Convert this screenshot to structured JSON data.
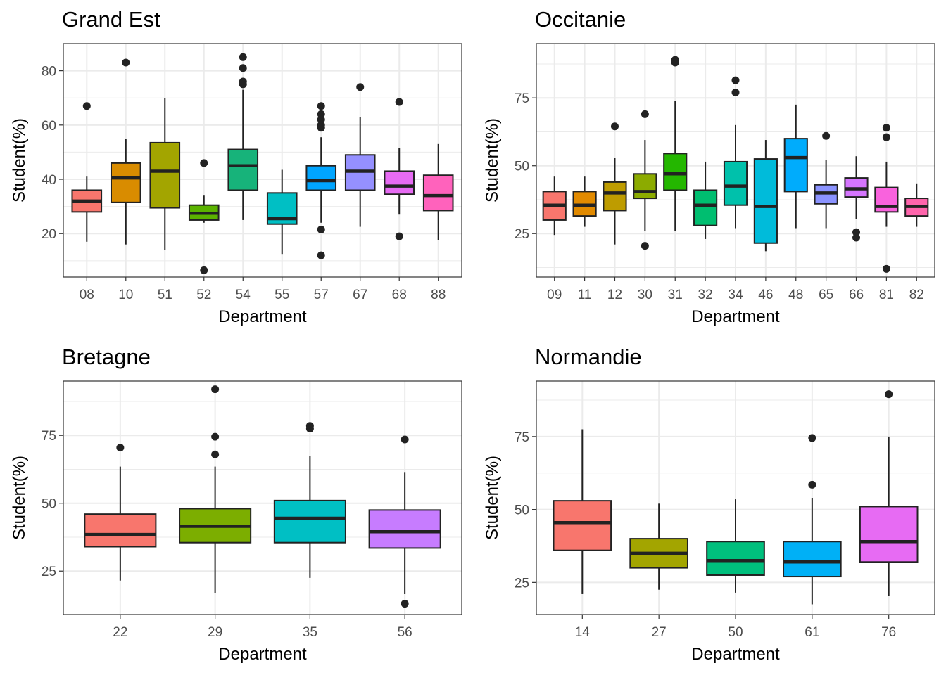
{
  "chart_data": [
    {
      "type": "boxplot",
      "title": "Grand Est",
      "xlabel": "Department",
      "ylabel": "Student(%)",
      "ylim": [
        4,
        90
      ],
      "yticks": [
        20,
        40,
        60,
        80
      ],
      "grid": true,
      "legend": "none",
      "categories": [
        "08",
        "10",
        "51",
        "52",
        "54",
        "55",
        "57",
        "67",
        "68",
        "88"
      ],
      "colors": [
        "#F8766D",
        "#D98C00",
        "#A3A500",
        "#5BB300",
        "#17B37A",
        "#00BFC4",
        "#00A5FF",
        "#9590FF",
        "#E76BF3",
        "#FF62BC"
      ],
      "boxes": [
        {
          "q1": 28,
          "median": 32,
          "q3": 36,
          "low": 17,
          "high": 41,
          "outliers": [
            67
          ]
        },
        {
          "q1": 31.5,
          "median": 40.5,
          "q3": 46,
          "low": 16,
          "high": 55,
          "outliers": [
            83
          ]
        },
        {
          "q1": 29.5,
          "median": 43,
          "q3": 53.5,
          "low": 14,
          "high": 70,
          "outliers": []
        },
        {
          "q1": 25,
          "median": 27.5,
          "q3": 30.5,
          "low": 24,
          "high": 34,
          "outliers": [
            46,
            6.5
          ]
        },
        {
          "q1": 36,
          "median": 45,
          "q3": 51,
          "low": 25,
          "high": 73,
          "outliers": [
            85,
            81,
            76,
            75
          ]
        },
        {
          "q1": 23.5,
          "median": 25.5,
          "q3": 35,
          "low": 12.5,
          "high": 43.5,
          "outliers": []
        },
        {
          "q1": 36,
          "median": 39.5,
          "q3": 45,
          "low": 24,
          "high": 55.5,
          "outliers": [
            67,
            64,
            62,
            60,
            59,
            21.5,
            12
          ]
        },
        {
          "q1": 36,
          "median": 43,
          "q3": 49,
          "low": 22.5,
          "high": 63,
          "outliers": [
            74
          ]
        },
        {
          "q1": 34.5,
          "median": 37.5,
          "q3": 43,
          "low": 27,
          "high": 51.5,
          "outliers": [
            68.5,
            19
          ]
        },
        {
          "q1": 28.5,
          "median": 34,
          "q3": 41.5,
          "low": 17.5,
          "high": 53,
          "outliers": []
        }
      ]
    },
    {
      "type": "boxplot",
      "title": "Occitanie",
      "xlabel": "Department",
      "ylabel": "Student(%)",
      "ylim": [
        9,
        95
      ],
      "yticks": [
        25,
        50,
        75
      ],
      "grid": true,
      "legend": "none",
      "categories": [
        "09",
        "11",
        "12",
        "30",
        "31",
        "32",
        "34",
        "46",
        "48",
        "65",
        "66",
        "81",
        "82"
      ],
      "colors": [
        "#F8766D",
        "#E18A00",
        "#BE9C00",
        "#8CAB00",
        "#24B700",
        "#00BE70",
        "#00C1AB",
        "#00BBDA",
        "#00ACFC",
        "#8B93FF",
        "#D575FE",
        "#F962DD",
        "#FF65AC"
      ],
      "boxes": [
        {
          "q1": 30,
          "median": 35.5,
          "q3": 40.5,
          "low": 24.5,
          "high": 46,
          "outliers": []
        },
        {
          "q1": 31.5,
          "median": 35.5,
          "q3": 40.5,
          "low": 27.5,
          "high": 46,
          "outliers": []
        },
        {
          "q1": 33.5,
          "median": 40,
          "q3": 44,
          "low": 21,
          "high": 53,
          "outliers": [
            64.5
          ]
        },
        {
          "q1": 38,
          "median": 40.5,
          "q3": 47,
          "low": 26,
          "high": 59.5,
          "outliers": [
            69,
            20.5
          ]
        },
        {
          "q1": 41,
          "median": 47,
          "q3": 54.5,
          "low": 26,
          "high": 74,
          "outliers": [
            89,
            88
          ]
        },
        {
          "q1": 28,
          "median": 35.5,
          "q3": 41,
          "low": 23,
          "high": 51.5,
          "outliers": []
        },
        {
          "q1": 35.5,
          "median": 42.5,
          "q3": 51.5,
          "low": 27,
          "high": 65,
          "outliers": [
            81.5,
            77
          ]
        },
        {
          "q1": 21.5,
          "median": 35,
          "q3": 52.5,
          "low": 18.5,
          "high": 59.5,
          "outliers": []
        },
        {
          "q1": 40.5,
          "median": 53,
          "q3": 60,
          "low": 27,
          "high": 72.5,
          "outliers": []
        },
        {
          "q1": 36,
          "median": 40,
          "q3": 43,
          "low": 27,
          "high": 52,
          "outliers": [
            61
          ]
        },
        {
          "q1": 38.5,
          "median": 41.5,
          "q3": 45.5,
          "low": 30.5,
          "high": 53.5,
          "outliers": [
            25.5,
            23.5
          ]
        },
        {
          "q1": 33,
          "median": 35,
          "q3": 42,
          "low": 27.5,
          "high": 51.5,
          "outliers": [
            64,
            60.5,
            12
          ]
        },
        {
          "q1": 31.5,
          "median": 35,
          "q3": 38,
          "low": 27.5,
          "high": 43.5,
          "outliers": []
        }
      ]
    },
    {
      "type": "boxplot",
      "title": "Bretagne",
      "xlabel": "Department",
      "ylabel": "Student(%)",
      "ylim": [
        9,
        95
      ],
      "yticks": [
        25,
        50,
        75
      ],
      "grid": true,
      "legend": "none",
      "categories": [
        "22",
        "29",
        "35",
        "56"
      ],
      "colors": [
        "#F8766D",
        "#7CAE00",
        "#00BFC4",
        "#C77CFF"
      ],
      "boxes": [
        {
          "q1": 34,
          "median": 38.5,
          "q3": 46,
          "low": 21.5,
          "high": 63.5,
          "outliers": [
            70.5
          ]
        },
        {
          "q1": 35.5,
          "median": 41.5,
          "q3": 48,
          "low": 17,
          "high": 63.5,
          "outliers": [
            92,
            74.5,
            68
          ]
        },
        {
          "q1": 35.5,
          "median": 44.5,
          "q3": 51,
          "low": 22.5,
          "high": 67.5,
          "outliers": [
            78.5,
            77.5
          ]
        },
        {
          "q1": 33.5,
          "median": 39.5,
          "q3": 47.5,
          "low": 16.5,
          "high": 61.5,
          "outliers": [
            73.5,
            13
          ]
        }
      ]
    },
    {
      "type": "boxplot",
      "title": "Normandie",
      "xlabel": "Department",
      "ylabel": "Student(%)",
      "ylim": [
        14,
        94
      ],
      "yticks": [
        25,
        50,
        75
      ],
      "grid": true,
      "legend": "none",
      "categories": [
        "14",
        "27",
        "50",
        "61",
        "76"
      ],
      "colors": [
        "#F8766D",
        "#A3A500",
        "#00BF7D",
        "#00B0F6",
        "#E76BF3"
      ],
      "boxes": [
        {
          "q1": 36,
          "median": 45.5,
          "q3": 53,
          "low": 21,
          "high": 77.5,
          "outliers": []
        },
        {
          "q1": 30,
          "median": 35,
          "q3": 40,
          "low": 22.5,
          "high": 52,
          "outliers": []
        },
        {
          "q1": 27.5,
          "median": 32.5,
          "q3": 39,
          "low": 21.5,
          "high": 53.5,
          "outliers": []
        },
        {
          "q1": 27,
          "median": 32,
          "q3": 39,
          "low": 17.5,
          "high": 54,
          "outliers": [
            74.5,
            58.5
          ]
        },
        {
          "q1": 32,
          "median": 39,
          "q3": 51,
          "low": 20.5,
          "high": 75,
          "outliers": [
            89.5
          ]
        }
      ]
    }
  ]
}
